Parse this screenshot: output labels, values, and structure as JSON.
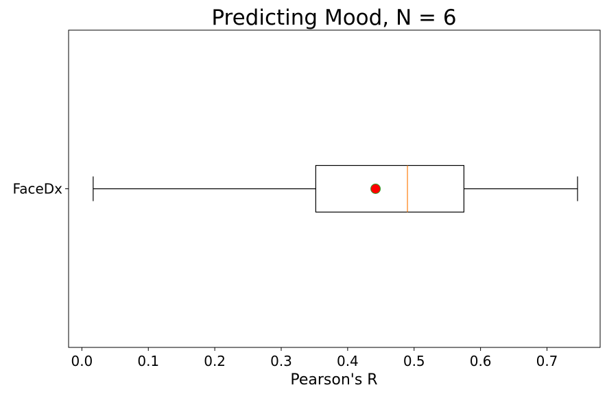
{
  "chart_data": {
    "type": "boxplot",
    "orientation": "horizontal",
    "title": "Predicting Mood, N = 6",
    "xlabel": "Pearson's R",
    "ylabel": "",
    "xlim": [
      -0.02,
      0.78
    ],
    "xticks": [
      0.0,
      0.1,
      0.2,
      0.3,
      0.4,
      0.5,
      0.6,
      0.7
    ],
    "xtick_labels": [
      "0.0",
      "0.1",
      "0.2",
      "0.3",
      "0.4",
      "0.5",
      "0.6",
      "0.7"
    ],
    "grid": false,
    "categories": [
      "FaceDx"
    ],
    "boxes": [
      {
        "label": "FaceDx",
        "whisker_low": 0.017,
        "q1": 0.352,
        "median": 0.49,
        "q3": 0.575,
        "whisker_high": 0.746,
        "mean": 0.442
      }
    ],
    "colors": {
      "box": "#000000",
      "median": "#ff7f0e",
      "mean_fill": "#ff0000",
      "mean_edge": "#2ca02c"
    }
  }
}
